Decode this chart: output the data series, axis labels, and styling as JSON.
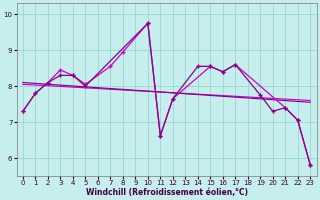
{
  "xlabel": "Windchill (Refroidissement éolien,°C)",
  "bg_color": "#c5eeed",
  "grid_color": "#9dd4d3",
  "line_color": "#cc00cc",
  "line_color2": "#880088",
  "xlim": [
    -0.5,
    23.5
  ],
  "ylim": [
    5.5,
    10.3
  ],
  "yticks": [
    6,
    7,
    8,
    9,
    10
  ],
  "xticks": [
    0,
    1,
    2,
    3,
    4,
    5,
    6,
    7,
    8,
    9,
    10,
    11,
    12,
    13,
    14,
    15,
    16,
    17,
    18,
    19,
    20,
    21,
    22,
    23
  ],
  "series_zigzag1": {
    "x": [
      0,
      1,
      2,
      3,
      4,
      5,
      7,
      8,
      10,
      11,
      12,
      15,
      16,
      17,
      21,
      22,
      23
    ],
    "y": [
      7.3,
      7.8,
      8.1,
      8.45,
      8.3,
      8.05,
      8.55,
      8.95,
      9.75,
      6.62,
      7.65,
      8.55,
      8.4,
      8.6,
      7.4,
      7.05,
      5.8
    ]
  },
  "series_zigzag2": {
    "x": [
      0,
      1,
      2,
      3,
      4,
      5,
      10,
      11,
      12,
      14,
      15,
      16,
      17,
      19,
      20,
      21,
      22,
      23
    ],
    "y": [
      7.3,
      7.8,
      8.1,
      8.3,
      8.3,
      8.0,
      9.75,
      6.62,
      7.65,
      8.55,
      8.55,
      8.4,
      8.6,
      7.75,
      7.3,
      7.4,
      7.05,
      5.8
    ]
  },
  "series_reg1": {
    "x": [
      0,
      23
    ],
    "y": [
      8.05,
      7.6
    ]
  },
  "series_reg2": {
    "x": [
      0,
      23
    ],
    "y": [
      8.1,
      7.55
    ]
  }
}
